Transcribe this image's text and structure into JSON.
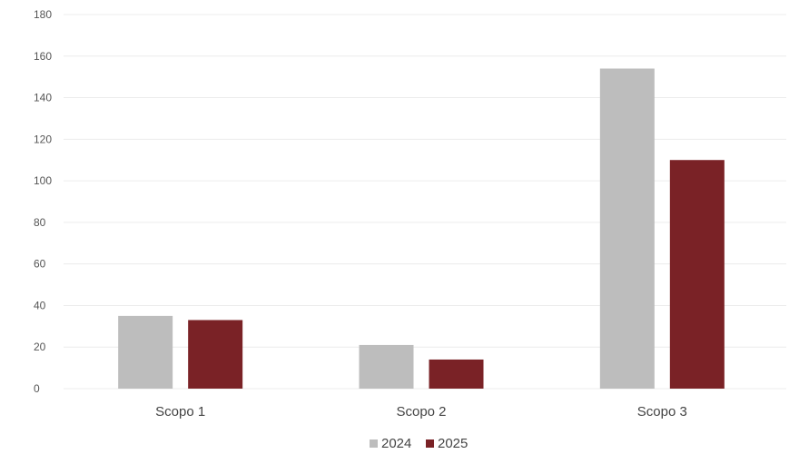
{
  "chart_data": {
    "type": "bar",
    "title": "",
    "xlabel": "",
    "ylabel": "",
    "categories": [
      "Scopo 1",
      "Scopo 2",
      "Scopo 3"
    ],
    "series": [
      {
        "name": "2024",
        "values": [
          35,
          21,
          154
        ],
        "color": "#bdbdbd"
      },
      {
        "name": "2025",
        "values": [
          33,
          14,
          110
        ],
        "color": "#7a2226"
      }
    ],
    "ylim": [
      0,
      180
    ],
    "yticks": [
      0,
      20,
      40,
      60,
      80,
      100,
      120,
      140,
      160,
      180
    ],
    "grid": true,
    "legend_position": "bottom-center"
  }
}
